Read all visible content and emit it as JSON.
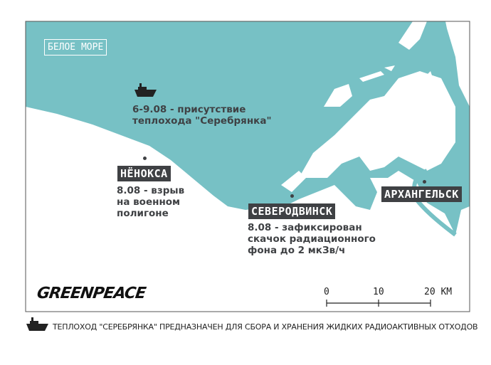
{
  "colors": {
    "sea": "#77c1c5",
    "land": "#ffffff",
    "label_bg": "#3f4144"
  },
  "sea_label": "БЕЛОЕ МОРЕ",
  "ship_note": "6-9.08 - присутствие\nтеплохода \"Серебрянка\"",
  "places": [
    {
      "name": "НЁНОКСА",
      "note": "8.08 - взрыв\nна военном\nполигоне"
    },
    {
      "name": "СЕВЕРОДВИНСК",
      "note": "8.08 - зафиксирован\nскачок радиационного\nфона до 2 мкЗв/ч"
    },
    {
      "name": "АРХАНГЕЛЬСК"
    }
  ],
  "scale": {
    "ticks": [
      "0",
      "10",
      "20 КМ"
    ]
  },
  "logo": "GREENPEACE",
  "legend": {
    "icon": "ship-icon",
    "text": "ТЕПЛОХОД \"СЕРЕБРЯНКА\" ПРЕДНАЗНАЧЕН ДЛЯ СБОРА И ХРАНЕНИЯ ЖИДКИХ РАДИОАКТИВНЫХ ОТХОДОВ"
  }
}
